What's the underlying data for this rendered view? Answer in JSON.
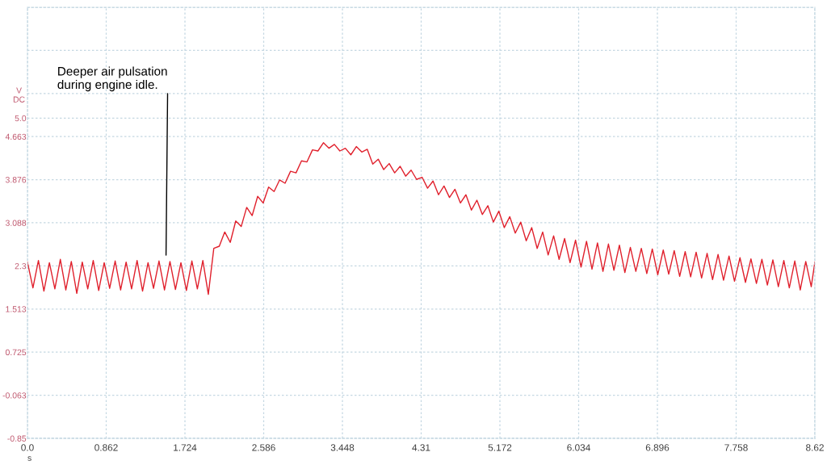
{
  "chart_data": {
    "type": "line",
    "xlabel": "s",
    "ylabel": "V\nDC",
    "xlim": [
      0,
      8.62
    ],
    "xticks": [
      {
        "value": 0,
        "label": "0.0"
      },
      0.862,
      1.724,
      2.586,
      3.448,
      4.31,
      5.172,
      6.034,
      6.896,
      7.758,
      8.62
    ],
    "ylim": [
      -0.85,
      7.025
    ],
    "yticks": [
      -0.85,
      -0.063,
      0.725,
      1.513,
      2.3,
      3.088,
      3.876,
      4.663,
      {
        "value": 5,
        "label": "5.0"
      },
      {
        "value": 5.45,
        "label": null
      },
      {
        "value": 6.238,
        "label": null
      },
      {
        "value": 7.025,
        "label": null
      }
    ],
    "grid": true,
    "annotations": [
      "Deeper air pulsation\nduring engine idle."
    ],
    "series": [
      {
        "color": "#e0202c",
        "x": [
          0.0,
          0.06,
          0.12,
          0.18,
          0.24,
          0.3,
          0.36,
          0.42,
          0.48,
          0.54,
          0.6,
          0.66,
          0.72,
          0.78,
          0.84,
          0.9,
          0.96,
          1.02,
          1.08,
          1.14,
          1.2,
          1.26,
          1.32,
          1.38,
          1.44,
          1.5,
          1.56,
          1.62,
          1.68,
          1.74,
          1.8,
          1.86,
          1.92,
          1.98,
          2.04,
          2.1,
          2.16,
          2.22,
          2.28,
          2.34,
          2.4,
          2.46,
          2.52,
          2.58,
          2.64,
          2.7,
          2.76,
          2.82,
          2.88,
          2.94,
          3.0,
          3.06,
          3.12,
          3.18,
          3.24,
          3.3,
          3.36,
          3.42,
          3.48,
          3.54,
          3.6,
          3.66,
          3.72,
          3.78,
          3.84,
          3.9,
          3.96,
          4.02,
          4.08,
          4.14,
          4.2,
          4.26,
          4.32,
          4.38,
          4.44,
          4.5,
          4.56,
          4.62,
          4.68,
          4.74,
          4.8,
          4.86,
          4.92,
          4.98,
          5.04,
          5.1,
          5.16,
          5.22,
          5.28,
          5.34,
          5.4,
          5.46,
          5.52,
          5.58,
          5.64,
          5.7,
          5.76,
          5.82,
          5.88,
          5.94,
          6.0,
          6.06,
          6.12,
          6.18,
          6.24,
          6.3,
          6.36,
          6.42,
          6.48,
          6.54,
          6.6,
          6.66,
          6.72,
          6.78,
          6.84,
          6.9,
          6.96,
          7.02,
          7.08,
          7.14,
          7.2,
          7.26,
          7.32,
          7.38,
          7.44,
          7.5,
          7.56,
          7.62,
          7.68,
          7.74,
          7.8,
          7.86,
          7.92,
          7.98,
          8.04,
          8.1,
          8.16,
          8.22,
          8.28,
          8.34,
          8.4,
          8.46,
          8.52,
          8.58,
          8.62
        ],
        "values": [
          2.37,
          1.9,
          2.4,
          1.84,
          2.36,
          1.88,
          2.42,
          1.86,
          2.38,
          1.8,
          2.37,
          1.88,
          2.4,
          1.85,
          2.36,
          1.89,
          2.39,
          1.86,
          2.37,
          1.88,
          2.4,
          1.84,
          2.36,
          1.89,
          2.39,
          1.86,
          2.38,
          1.87,
          2.36,
          1.85,
          2.39,
          1.88,
          2.4,
          1.78,
          2.62,
          2.66,
          2.92,
          2.73,
          3.12,
          3.02,
          3.37,
          3.22,
          3.57,
          3.45,
          3.74,
          3.66,
          3.87,
          3.81,
          4.03,
          4.0,
          4.22,
          4.2,
          4.42,
          4.4,
          4.55,
          4.45,
          4.52,
          4.4,
          4.45,
          4.33,
          4.48,
          4.38,
          4.43,
          4.16,
          4.25,
          4.06,
          4.17,
          4.0,
          4.12,
          3.94,
          4.05,
          3.88,
          3.92,
          3.72,
          3.85,
          3.6,
          3.76,
          3.55,
          3.7,
          3.45,
          3.6,
          3.32,
          3.5,
          3.24,
          3.4,
          3.1,
          3.3,
          3.0,
          3.2,
          2.9,
          3.1,
          2.76,
          3.0,
          2.62,
          2.92,
          2.5,
          2.85,
          2.42,
          2.8,
          2.36,
          2.77,
          2.28,
          2.75,
          2.24,
          2.72,
          2.2,
          2.7,
          2.22,
          2.68,
          2.18,
          2.64,
          2.2,
          2.62,
          2.16,
          2.61,
          2.14,
          2.59,
          2.15,
          2.58,
          2.11,
          2.56,
          2.1,
          2.55,
          2.08,
          2.53,
          2.05,
          2.51,
          2.04,
          2.48,
          2.02,
          2.45,
          2.0,
          2.43,
          1.98,
          2.42,
          1.95,
          2.41,
          1.92,
          2.4,
          1.9,
          2.39,
          1.86,
          2.38,
          1.92,
          2.37
        ]
      }
    ]
  }
}
